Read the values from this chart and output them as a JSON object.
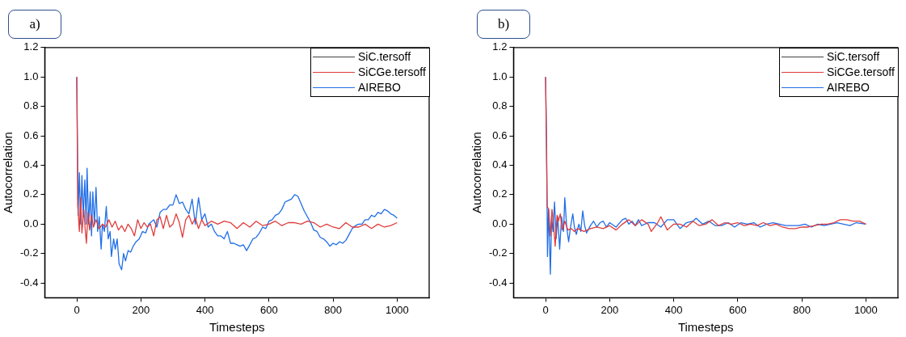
{
  "chart_data": [
    {
      "type": "line",
      "title": "a)",
      "xlabel": "Timesteps",
      "ylabel": "Autocorrelation",
      "xlim": [
        -100,
        1100
      ],
      "ylim": [
        -0.5,
        1.2
      ],
      "xticks": [
        0,
        200,
        400,
        600,
        800,
        1000
      ],
      "yticks": [
        {
          "value": -0.4,
          "label": "-0.4"
        },
        {
          "value": -0.2,
          "label": "-0.2"
        },
        {
          "value": 0,
          "label": "0.0"
        },
        {
          "value": 0.2,
          "label": "0.2"
        },
        {
          "value": 0.4,
          "label": "0.4"
        },
        {
          "value": 0.6,
          "label": "0.6"
        },
        {
          "value": 0.8,
          "label": "0.8"
        },
        {
          "value": 1,
          "label": "1.0"
        },
        {
          "value": 1.2,
          "label": "1.2"
        }
      ],
      "grid": false,
      "legend": "top right",
      "marker": "none",
      "line_style": "solid",
      "series": [
        {
          "name": "SiC.tersoff",
          "color": "#404040"
        },
        {
          "name": "SiCGe.tersoff",
          "color": "#e03c3c",
          "x": [
            0,
            3,
            8,
            12,
            16,
            22,
            26,
            30,
            35,
            40,
            46,
            52,
            60,
            70,
            80,
            90,
            100,
            110,
            120,
            130,
            140,
            150,
            160,
            170,
            180,
            190,
            200,
            210,
            220,
            230,
            240,
            250,
            260,
            270,
            280,
            290,
            300,
            310,
            320,
            330,
            340,
            350,
            360,
            370,
            380,
            390,
            400,
            420,
            440,
            460,
            480,
            500,
            520,
            540,
            560,
            580,
            600,
            620,
            640,
            660,
            680,
            700,
            720,
            740,
            760,
            780,
            800,
            820,
            840,
            860,
            880,
            900,
            920,
            940,
            960,
            980,
            1000
          ],
          "values": [
            1.0,
            0.13,
            -0.05,
            0.18,
            -0.06,
            0.1,
            -0.03,
            -0.13,
            0.08,
            -0.04,
            0.06,
            -0.02,
            0.03,
            -0.03,
            0.0,
            -0.02,
            0.03,
            -0.02,
            0.02,
            -0.04,
            -0.01,
            -0.05,
            0.0,
            -0.03,
            -0.08,
            0.03,
            -0.03,
            0.01,
            -0.02,
            0.0,
            -0.08,
            0.03,
            0.05,
            -0.03,
            0.06,
            -0.02,
            0.0,
            0.07,
            0.01,
            -0.09,
            0.03,
            0.06,
            0.0,
            0.04,
            -0.03,
            0.03,
            -0.01,
            0.02,
            0.0,
            0.02,
            0.01,
            -0.03,
            0.01,
            -0.02,
            0.02,
            -0.01,
            0.0,
            0.02,
            -0.01,
            0.01,
            0.01,
            0.0,
            0.02,
            0.01,
            -0.02,
            0.0,
            -0.02,
            -0.03,
            0.01,
            -0.02,
            -0.02,
            0.0,
            -0.03,
            0.0,
            -0.02,
            -0.01,
            0.01
          ]
        },
        {
          "name": "AIREBO",
          "color": "#1f6ee8",
          "x": [
            0,
            4,
            8,
            12,
            16,
            20,
            25,
            29,
            32,
            37,
            42,
            46,
            50,
            55,
            60,
            65,
            70,
            76,
            80,
            86,
            92,
            98,
            104,
            108,
            115,
            120,
            126,
            132,
            140,
            146,
            152,
            160,
            168,
            176,
            185,
            195,
            205,
            215,
            225,
            240,
            250,
            260,
            270,
            280,
            290,
            300,
            310,
            320,
            330,
            340,
            350,
            360,
            370,
            380,
            390,
            400,
            410,
            420,
            430,
            440,
            450,
            460,
            470,
            480,
            490,
            500,
            510,
            520,
            530,
            540,
            550,
            560,
            570,
            580,
            590,
            600,
            610,
            620,
            630,
            640,
            650,
            660,
            670,
            680,
            690,
            700,
            710,
            720,
            730,
            740,
            750,
            760,
            770,
            780,
            790,
            800,
            810,
            820,
            830,
            840,
            850,
            860,
            870,
            880,
            890,
            900,
            910,
            920,
            930,
            940,
            950,
            960,
            970,
            980,
            990,
            1000
          ],
          "values": [
            1.0,
            0.06,
            0.35,
            0.0,
            0.33,
            0.05,
            0.3,
            0.0,
            0.38,
            0.0,
            0.22,
            -0.08,
            0.22,
            0.0,
            0.25,
            -0.05,
            0.05,
            -0.17,
            0.0,
            -0.05,
            0.12,
            -0.1,
            -0.05,
            -0.22,
            -0.1,
            -0.17,
            -0.1,
            -0.27,
            -0.31,
            -0.2,
            -0.25,
            -0.18,
            -0.19,
            -0.15,
            -0.12,
            -0.1,
            -0.05,
            -0.06,
            0.0,
            0.03,
            -0.02,
            0.08,
            0.1,
            0.1,
            0.13,
            0.13,
            0.2,
            0.14,
            0.15,
            0.1,
            0.07,
            0.17,
            0.0,
            0.18,
            0.03,
            0.07,
            -0.02,
            0.0,
            -0.05,
            -0.08,
            -0.08,
            -0.1,
            -0.05,
            -0.13,
            -0.13,
            -0.14,
            -0.15,
            -0.14,
            -0.18,
            -0.14,
            -0.1,
            -0.09,
            -0.06,
            -0.02,
            -0.03,
            0.02,
            0.03,
            0.06,
            0.07,
            0.1,
            0.15,
            0.16,
            0.17,
            0.2,
            0.19,
            0.14,
            0.09,
            0.05,
            0.01,
            -0.04,
            -0.05,
            -0.09,
            -0.1,
            -0.12,
            -0.15,
            -0.13,
            -0.14,
            -0.12,
            -0.13,
            -0.11,
            -0.07,
            -0.03,
            -0.01,
            0.0,
            0.0,
            0.03,
            0.03,
            0.06,
            0.05,
            0.08,
            0.07,
            0.1,
            0.09,
            0.07,
            0.06,
            0.04
          ]
        }
      ]
    },
    {
      "type": "line",
      "title": "b)",
      "xlabel": "Timesteps",
      "ylabel": "Autocorrelation",
      "xlim": [
        -100,
        1100
      ],
      "ylim": [
        -0.5,
        1.2
      ],
      "xticks": [
        0,
        200,
        400,
        600,
        800,
        1000
      ],
      "yticks": [
        {
          "value": -0.4,
          "label": "-0.4"
        },
        {
          "value": -0.2,
          "label": "-0.2"
        },
        {
          "value": 0,
          "label": "0.0"
        },
        {
          "value": 0.2,
          "label": "0.2"
        },
        {
          "value": 0.4,
          "label": "0.4"
        },
        {
          "value": 0.6,
          "label": "0.6"
        },
        {
          "value": 0.8,
          "label": "0.8"
        },
        {
          "value": 1,
          "label": "1.0"
        },
        {
          "value": 1.2,
          "label": "1.2"
        }
      ],
      "grid": false,
      "legend": "top right",
      "marker": "none",
      "line_style": "solid",
      "series": [
        {
          "name": "SiC.tersoff",
          "color": "#404040"
        },
        {
          "name": "SiCGe.tersoff",
          "color": "#e03c3c",
          "x": [
            0,
            5,
            10,
            15,
            20,
            25,
            30,
            36,
            40,
            46,
            52,
            60,
            70,
            80,
            90,
            100,
            120,
            140,
            160,
            180,
            200,
            220,
            240,
            260,
            280,
            300,
            320,
            330,
            350,
            360,
            380,
            400,
            420,
            440,
            460,
            480,
            500,
            520,
            540,
            560,
            580,
            600,
            620,
            640,
            660,
            680,
            700,
            720,
            740,
            760,
            780,
            800,
            820,
            840,
            860,
            880,
            900,
            920,
            940,
            960,
            980,
            1000
          ],
          "values": [
            1.0,
            0.12,
            0.1,
            -0.08,
            0.1,
            0.0,
            -0.15,
            0.06,
            0.02,
            0.07,
            -0.04,
            0.02,
            -0.04,
            -0.03,
            -0.05,
            -0.03,
            -0.05,
            -0.03,
            -0.02,
            -0.03,
            -0.01,
            -0.04,
            0.0,
            0.03,
            -0.01,
            0.03,
            0.0,
            -0.05,
            0.01,
            0.05,
            -0.04,
            0.0,
            0.0,
            -0.02,
            0.02,
            -0.01,
            0.0,
            0.03,
            -0.01,
            0.01,
            0.0,
            0.01,
            -0.01,
            0.0,
            -0.01,
            0.01,
            -0.01,
            0.0,
            -0.02,
            -0.03,
            -0.03,
            -0.02,
            -0.02,
            -0.01,
            0.0,
            0.0,
            0.01,
            0.03,
            0.03,
            0.02,
            0.02,
            0.0
          ]
        },
        {
          "name": "AIREBO",
          "color": "#1f6ee8",
          "x": [
            0,
            3,
            6,
            9,
            12,
            15,
            19,
            23,
            28,
            33,
            38,
            44,
            50,
            56,
            60,
            66,
            72,
            78,
            85,
            90,
            96,
            104,
            110,
            116,
            122,
            128,
            140,
            150,
            160,
            170,
            180,
            190,
            200,
            220,
            240,
            250,
            260,
            270,
            280,
            290,
            300,
            320,
            340,
            360,
            380,
            400,
            420,
            440,
            460,
            470,
            490,
            510,
            530,
            550,
            570,
            590,
            610,
            630,
            650,
            670,
            690,
            710,
            730,
            750,
            770,
            790,
            810,
            830,
            850,
            870,
            890,
            910,
            930,
            950,
            970,
            1000
          ],
          "values": [
            1.0,
            0.6,
            -0.22,
            0.1,
            -0.1,
            -0.34,
            0.05,
            -0.05,
            0.15,
            -0.1,
            0.05,
            -0.17,
            0.05,
            -0.05,
            0.18,
            -0.02,
            -0.12,
            -0.02,
            0.07,
            -0.02,
            -0.07,
            0.0,
            -0.05,
            0.09,
            -0.01,
            -0.06,
            -0.01,
            0.02,
            -0.02,
            0.01,
            0.02,
            -0.02,
            0.01,
            -0.02,
            0.03,
            0.04,
            0.0,
            0.02,
            -0.01,
            0.03,
            -0.01,
            0.01,
            0.01,
            -0.02,
            0.03,
            0.03,
            -0.03,
            0.01,
            0.02,
            0.04,
            0.0,
            0.02,
            -0.01,
            -0.01,
            0.01,
            -0.02,
            0.01,
            0.0,
            0.01,
            -0.02,
            0.0,
            0.01,
            0.0,
            -0.01,
            -0.01,
            -0.01,
            0.0,
            -0.02,
            0.0,
            -0.01,
            0.0,
            0.01,
            0.0,
            -0.01,
            0.01,
            0.0
          ]
        }
      ]
    }
  ]
}
